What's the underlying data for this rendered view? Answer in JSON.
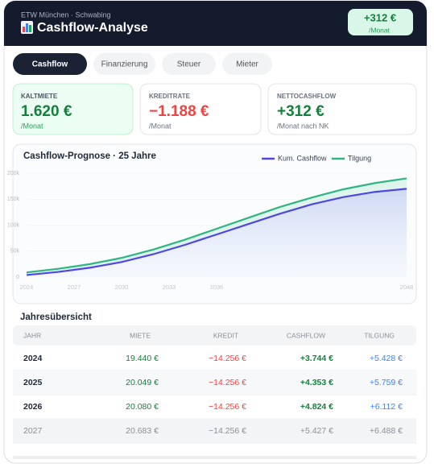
{
  "header": {
    "subtitle": "ETW München · Schwabing",
    "title": "Cashflow-Analyse",
    "badge": {
      "value": "+312 €",
      "unit": "/Monat"
    }
  },
  "tabs": [
    "Cashflow",
    "Finanzierung",
    "Steuer",
    "Mieter"
  ],
  "kpis": [
    {
      "label": "KALTMIETE",
      "value": "1.620 €",
      "unit": "/Monat"
    },
    {
      "label": "KREDITRATE",
      "value": "−1.188 €",
      "unit": "/Monat"
    },
    {
      "label": "NETTOCASHFLOW",
      "value": "+312 €",
      "unit": "/Monat nach NK"
    }
  ],
  "chart_data": {
    "type": "line",
    "title": "Cashflow-Prognose · 25 Jahre",
    "x": [
      2024,
      2026,
      2028,
      2030,
      2032,
      2034,
      2036,
      2038,
      2040,
      2042,
      2044,
      2046,
      2048
    ],
    "xlim": [
      2024,
      2048
    ],
    "xticks": [
      2024,
      2027,
      2030,
      2033,
      2036,
      2048
    ],
    "ylim": [
      0,
      200000
    ],
    "yticks": [
      0,
      {
        "value": 50000,
        "label": "50k"
      },
      {
        "value": 100000,
        "label": "100k"
      },
      {
        "value": 150000,
        "label": "150k"
      },
      {
        "value": 200000,
        "label": "200k"
      }
    ],
    "series": [
      {
        "name": "Kum. Cashflow",
        "color": "#4f46e5",
        "values": [
          4000,
          10000,
          18000,
          29000,
          44000,
          62000,
          82000,
          102000,
          122000,
          140000,
          154000,
          164000,
          170000
        ]
      },
      {
        "name": "Tilgung",
        "color": "#2fb584",
        "values": [
          9000,
          16000,
          25000,
          37000,
          53000,
          72000,
          93000,
          114000,
          135000,
          153000,
          169000,
          181000,
          190000
        ]
      }
    ]
  },
  "table": {
    "title": "Jahresübersicht",
    "columns": [
      "JAHR",
      "MIETE",
      "KREDIT",
      "CASHFLOW",
      "TILGUNG"
    ],
    "rows": [
      [
        "2024",
        "19.440 €",
        "−14.256 €",
        "+3.744 €",
        "+5.428 €"
      ],
      [
        "2025",
        "20.049 €",
        "−14.256 €",
        "+4.353 €",
        "+5.759 €"
      ],
      [
        "2026",
        "20.080 €",
        "−14.256 €",
        "+4.824 €",
        "+6.112 €"
      ],
      [
        "2027",
        "20.683 €",
        "−14.256 €",
        "+5.427 €",
        "+6.488 €"
      ]
    ]
  }
}
